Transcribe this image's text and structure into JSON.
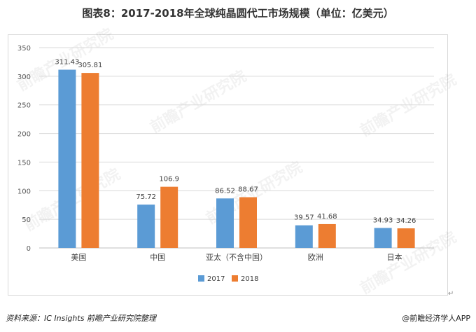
{
  "title": "图表8：2017-2018年全球纯晶圆代工市场规模（单位：亿美元）",
  "chart_data": {
    "type": "bar",
    "categories": [
      "美国",
      "中国",
      "亚太（不含中国）",
      "欧洲",
      "日本"
    ],
    "series": [
      {
        "name": "2017",
        "color": "#5b9bd5",
        "values": [
          311.43,
          75.72,
          86.52,
          39.57,
          34.93
        ],
        "labels": [
          "311.43",
          "75.72",
          "86.52",
          "39.57",
          "34.93"
        ]
      },
      {
        "name": "2018",
        "color": "#ed7d31",
        "values": [
          305.81,
          106.9,
          88.67,
          41.68,
          34.26
        ],
        "labels": [
          "305.81",
          "106.9",
          "88.67",
          "41.68",
          "34.26"
        ]
      }
    ],
    "ylim": [
      0,
      350
    ],
    "yticks": [
      0,
      50,
      100,
      150,
      200,
      250,
      300,
      350
    ],
    "grid": true,
    "legend": "bottom"
  },
  "watermark_text": "前瞻产业研究院",
  "source": "资料来源：IC Insights 前瞻产业研究院整理",
  "brand": "@前瞻经济学人APP",
  "mark_return": "↵"
}
